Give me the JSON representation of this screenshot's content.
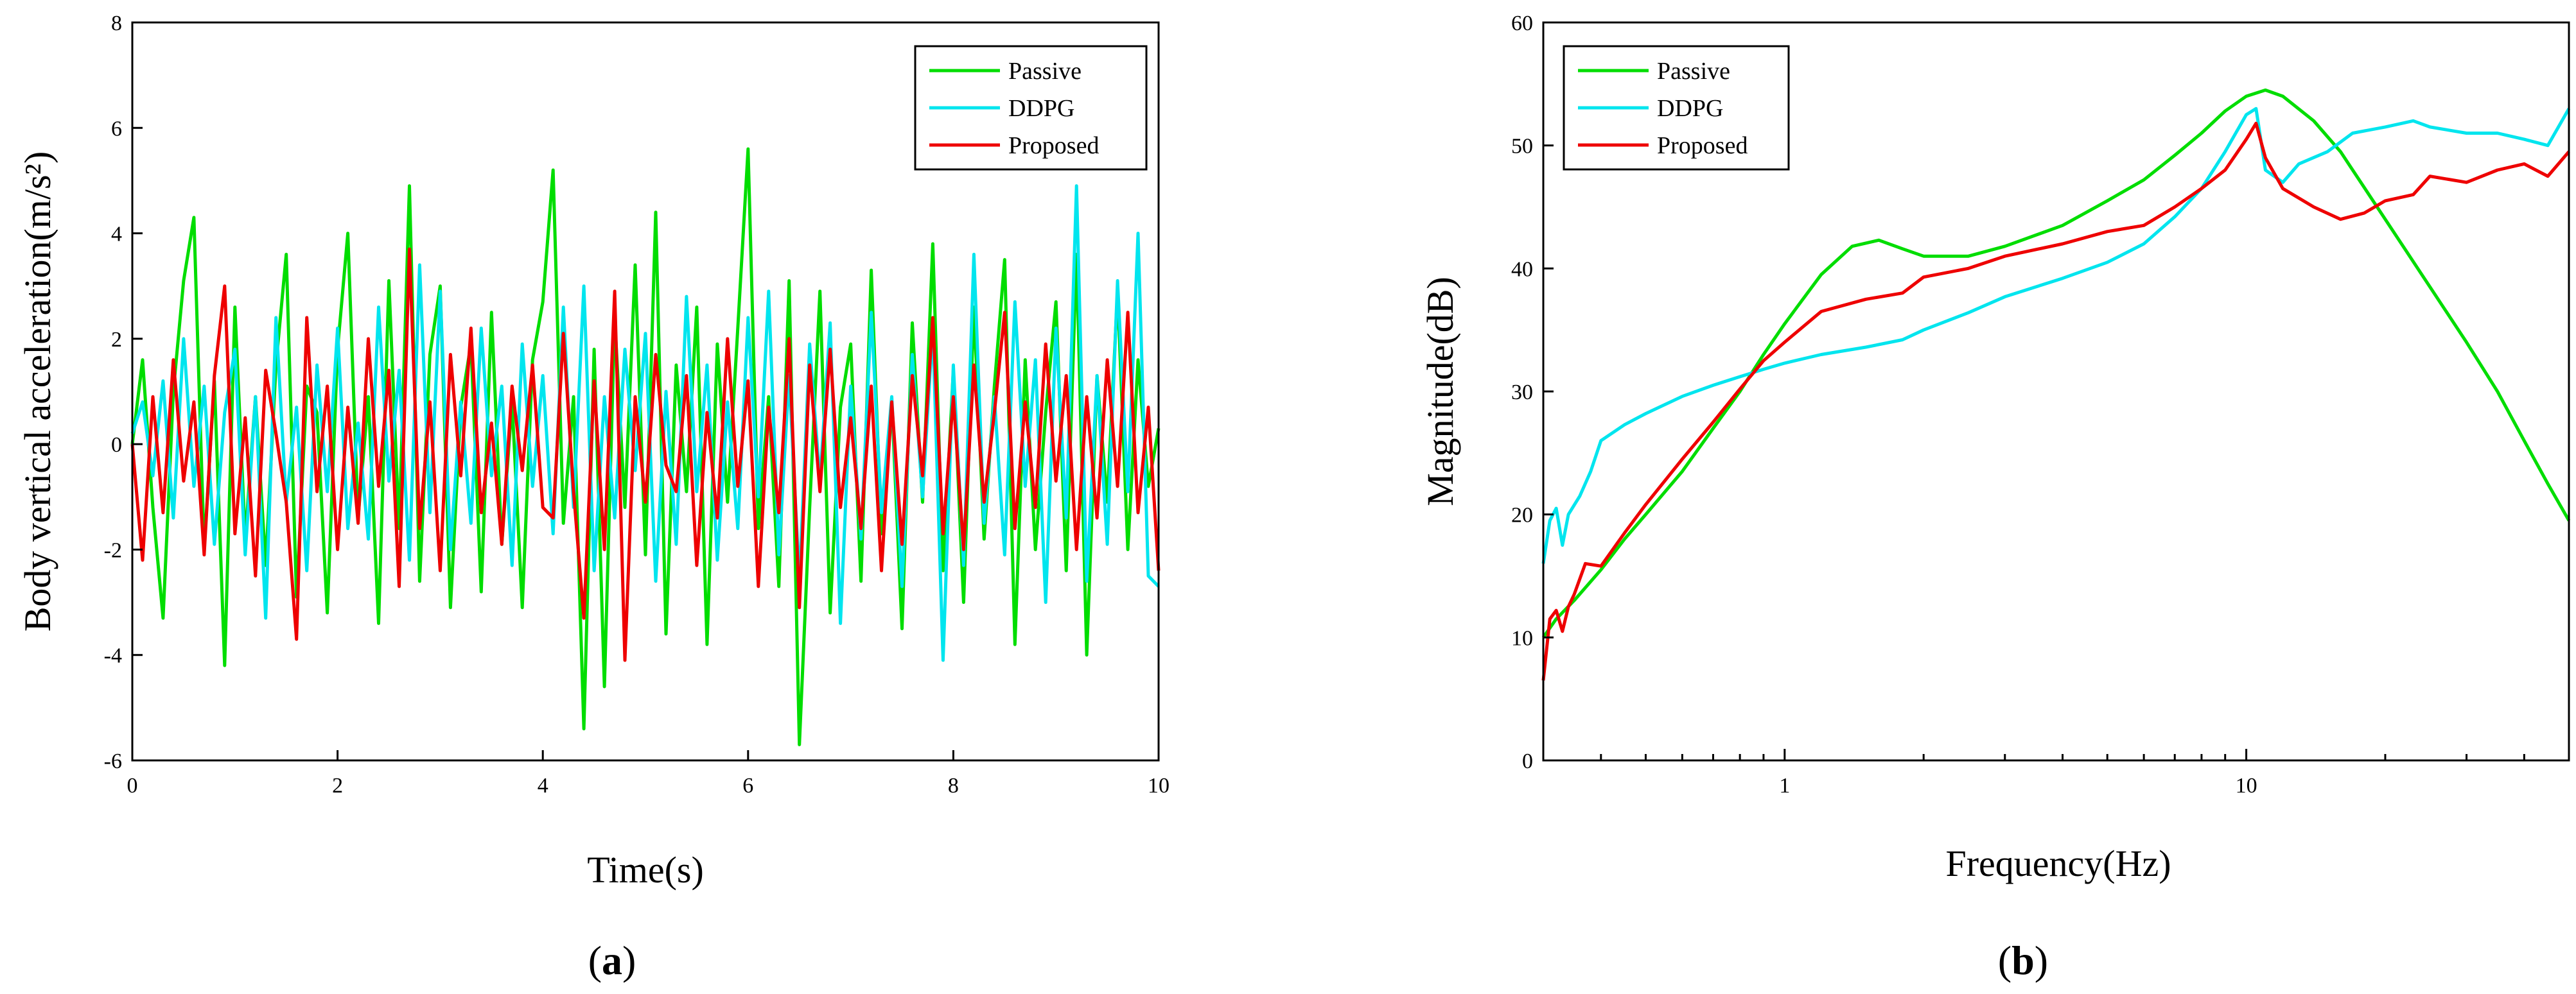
{
  "chart_data": [
    {
      "type": "line",
      "panel": "a",
      "xlabel": "Time(s)",
      "ylabel": "Body vertical acceleration(m/s²)",
      "xlim": [
        0,
        10
      ],
      "ylim": [
        -6,
        8
      ],
      "xticks": [
        0,
        2,
        4,
        6,
        8,
        10
      ],
      "yticks": [
        -6,
        -4,
        -2,
        0,
        2,
        4,
        6,
        8
      ],
      "legend_position": "top-right",
      "series": [
        {
          "name": "Passive",
          "color": "#00dd00",
          "x": [
            0,
            0.1,
            0.2,
            0.3,
            0.4,
            0.5,
            0.6,
            0.7,
            0.8,
            0.9,
            1,
            1.1,
            1.2,
            1.3,
            1.4,
            1.5,
            1.6,
            1.7,
            1.8,
            1.9,
            2,
            2.1,
            2.2,
            2.3,
            2.4,
            2.5,
            2.6,
            2.7,
            2.8,
            2.9,
            3,
            3.1,
            3.2,
            3.3,
            3.4,
            3.5,
            3.6,
            3.7,
            3.8,
            3.9,
            4,
            4.1,
            4.2,
            4.3,
            4.4,
            4.5,
            4.6,
            4.7,
            4.8,
            4.9,
            5,
            5.1,
            5.2,
            5.3,
            5.4,
            5.5,
            5.6,
            5.7,
            5.8,
            5.9,
            6,
            6.1,
            6.2,
            6.3,
            6.4,
            6.5,
            6.6,
            6.7,
            6.8,
            6.9,
            7,
            7.1,
            7.2,
            7.3,
            7.4,
            7.5,
            7.6,
            7.7,
            7.8,
            7.9,
            8,
            8.1,
            8.2,
            8.3,
            8.4,
            8.5,
            8.6,
            8.7,
            8.8,
            8.9,
            9,
            9.1,
            9.2,
            9.3,
            9.4,
            9.5,
            9.6,
            9.7,
            9.8,
            9.9,
            10
          ],
          "values": [
            0,
            1.6,
            -1.2,
            -3.3,
            1.0,
            3.1,
            4.3,
            -2.0,
            1.2,
            -4.2,
            2.6,
            -1.8,
            0.9,
            -2.3,
            1.5,
            3.6,
            -2.9,
            1.1,
            0.6,
            -3.2,
            1.8,
            4.0,
            -1.4,
            0.9,
            -3.4,
            3.1,
            -1.6,
            4.9,
            -2.6,
            1.7,
            3.0,
            -3.1,
            0.7,
            1.9,
            -2.8,
            2.5,
            -1.9,
            0.8,
            -3.1,
            1.6,
            2.7,
            5.2,
            -1.5,
            0.9,
            -5.4,
            1.8,
            -4.6,
            2.4,
            -1.2,
            3.4,
            -2.1,
            4.4,
            -3.6,
            1.5,
            -0.9,
            2.6,
            -3.8,
            1.9,
            -1.1,
            2.2,
            5.6,
            -1.6,
            0.9,
            -2.7,
            3.1,
            -5.7,
            -1.2,
            2.9,
            -3.2,
            0.7,
            1.9,
            -2.6,
            3.3,
            -1.7,
            0.8,
            -3.5,
            2.3,
            -1.1,
            3.8,
            -2.4,
            1.4,
            -3.0,
            2.6,
            -1.8,
            1.1,
            3.5,
            -3.8,
            1.6,
            -2.0,
            0.6,
            2.7,
            -2.4,
            3.6,
            -4.0,
            1.3,
            -1.1,
            2.9,
            -2.0,
            1.6,
            -0.8,
            0.3
          ]
        },
        {
          "name": "DDPG",
          "color": "#00e5ee",
          "x": [
            0,
            0.1,
            0.2,
            0.3,
            0.4,
            0.5,
            0.6,
            0.7,
            0.8,
            0.9,
            1,
            1.1,
            1.2,
            1.3,
            1.4,
            1.5,
            1.6,
            1.7,
            1.8,
            1.9,
            2,
            2.1,
            2.2,
            2.3,
            2.4,
            2.5,
            2.6,
            2.7,
            2.8,
            2.9,
            3,
            3.1,
            3.2,
            3.3,
            3.4,
            3.5,
            3.6,
            3.7,
            3.8,
            3.9,
            4,
            4.1,
            4.2,
            4.3,
            4.4,
            4.5,
            4.6,
            4.7,
            4.8,
            4.9,
            5,
            5.1,
            5.2,
            5.3,
            5.4,
            5.5,
            5.6,
            5.7,
            5.8,
            5.9,
            6,
            6.1,
            6.2,
            6.3,
            6.4,
            6.5,
            6.6,
            6.7,
            6.8,
            6.9,
            7,
            7.1,
            7.2,
            7.3,
            7.4,
            7.5,
            7.6,
            7.7,
            7.8,
            7.9,
            8,
            8.1,
            8.2,
            8.3,
            8.4,
            8.5,
            8.6,
            8.7,
            8.8,
            8.9,
            9,
            9.1,
            9.2,
            9.3,
            9.4,
            9.5,
            9.6,
            9.7,
            9.8,
            9.9,
            10
          ],
          "values": [
            0.2,
            0.8,
            -0.6,
            1.2,
            -1.4,
            2.0,
            -0.8,
            1.1,
            -1.9,
            0.6,
            1.8,
            -2.1,
            0.9,
            -3.3,
            2.4,
            -1.1,
            0.7,
            -2.4,
            1.5,
            -0.9,
            2.2,
            -1.6,
            0.4,
            -1.8,
            2.6,
            -0.7,
            1.4,
            -2.2,
            3.4,
            -1.3,
            2.9,
            -2.0,
            0.8,
            -1.5,
            2.2,
            -0.6,
            1.1,
            -2.3,
            1.9,
            -0.8,
            1.3,
            -1.7,
            2.6,
            -1.2,
            3.0,
            -2.4,
            0.9,
            -1.4,
            1.8,
            -0.5,
            2.1,
            -2.6,
            1.0,
            -1.9,
            2.8,
            -0.9,
            1.5,
            -2.2,
            0.8,
            -1.6,
            2.4,
            -1.0,
            2.9,
            -2.1,
            1.3,
            -2.6,
            1.9,
            -0.7,
            2.3,
            -3.4,
            1.1,
            -1.8,
            2.5,
            -1.3,
            0.9,
            -2.7,
            1.7,
            -1.0,
            2.2,
            -4.1,
            1.5,
            -2.3,
            3.6,
            -1.5,
            0.9,
            -2.1,
            2.7,
            -0.8,
            1.6,
            -3.0,
            2.2,
            -1.4,
            4.9,
            -2.6,
            1.3,
            -1.9,
            3.1,
            -0.9,
            4.0,
            -2.5,
            -2.7
          ]
        },
        {
          "name": "Proposed",
          "color": "#ee0000",
          "x": [
            0,
            0.1,
            0.2,
            0.3,
            0.4,
            0.5,
            0.6,
            0.7,
            0.8,
            0.9,
            1,
            1.1,
            1.2,
            1.3,
            1.4,
            1.5,
            1.6,
            1.7,
            1.8,
            1.9,
            2,
            2.1,
            2.2,
            2.3,
            2.4,
            2.5,
            2.6,
            2.7,
            2.8,
            2.9,
            3,
            3.1,
            3.2,
            3.3,
            3.4,
            3.5,
            3.6,
            3.7,
            3.8,
            3.9,
            4,
            4.1,
            4.2,
            4.3,
            4.4,
            4.5,
            4.6,
            4.7,
            4.8,
            4.9,
            5,
            5.1,
            5.2,
            5.3,
            5.4,
            5.5,
            5.6,
            5.7,
            5.8,
            5.9,
            6,
            6.1,
            6.2,
            6.3,
            6.4,
            6.5,
            6.6,
            6.7,
            6.8,
            6.9,
            7,
            7.1,
            7.2,
            7.3,
            7.4,
            7.5,
            7.6,
            7.7,
            7.8,
            7.9,
            8,
            8.1,
            8.2,
            8.3,
            8.4,
            8.5,
            8.6,
            8.7,
            8.8,
            8.9,
            9,
            9.1,
            9.2,
            9.3,
            9.4,
            9.5,
            9.6,
            9.7,
            9.8,
            9.9,
            10
          ],
          "values": [
            0,
            -2.2,
            0.9,
            -1.3,
            1.6,
            -0.7,
            0.8,
            -2.1,
            1.3,
            3.0,
            -1.7,
            0.5,
            -2.5,
            1.4,
            0.2,
            -1.1,
            -3.7,
            2.4,
            -0.9,
            1.1,
            -2.0,
            0.7,
            -1.5,
            2.0,
            -0.8,
            1.4,
            -2.7,
            3.7,
            -1.6,
            0.8,
            -2.4,
            1.7,
            -0.6,
            2.2,
            -1.3,
            0.4,
            -1.9,
            1.1,
            -0.5,
            1.5,
            -1.2,
            -1.4,
            2.1,
            -0.9,
            -3.3,
            1.2,
            -2.0,
            2.9,
            -4.1,
            0.9,
            -1.1,
            1.7,
            -0.4,
            -0.9,
            1.3,
            -2.3,
            0.6,
            -1.4,
            2.0,
            -0.8,
            1.2,
            -2.7,
            0.7,
            -1.3,
            2.0,
            -3.1,
            1.5,
            -0.9,
            1.8,
            -1.2,
            0.5,
            -1.6,
            1.1,
            -2.4,
            0.8,
            -1.9,
            1.3,
            -0.6,
            2.4,
            -1.7,
            0.9,
            -2.0,
            1.5,
            -1.1,
            0.6,
            2.5,
            -1.6,
            0.8,
            -1.2,
            1.9,
            -0.7,
            1.3,
            -2.0,
            0.9,
            -1.4,
            1.6,
            -0.8,
            2.5,
            -1.3,
            0.7,
            -2.4
          ]
        }
      ]
    },
    {
      "type": "line",
      "panel": "b",
      "xlabel": "Frequency(Hz)",
      "ylabel": "Magnitude(dB)",
      "xscale": "log",
      "xlim": [
        0.3,
        50
      ],
      "ylim": [
        0,
        60
      ],
      "xticks": [
        1,
        10
      ],
      "yticks": [
        0,
        10,
        20,
        30,
        40,
        50,
        60
      ],
      "legend_position": "top-left",
      "series": [
        {
          "name": "Passive",
          "color": "#00dd00",
          "x": [
            0.3,
            0.32,
            0.35,
            0.4,
            0.45,
            0.5,
            0.6,
            0.7,
            0.8,
            0.9,
            1,
            1.2,
            1.4,
            1.6,
            1.8,
            2,
            2.5,
            3,
            4,
            5,
            6,
            7,
            8,
            9,
            10,
            11,
            12,
            14,
            16,
            20,
            25,
            30,
            35,
            40,
            45,
            50
          ],
          "values": [
            10,
            11.5,
            13,
            15.5,
            18,
            20,
            23.5,
            27,
            30,
            33,
            35.5,
            39.5,
            41.8,
            42.3,
            41.6,
            41,
            41,
            41.8,
            43.5,
            45.5,
            47.2,
            49.2,
            51,
            52.8,
            54,
            54.5,
            54,
            52,
            49.5,
            44,
            38.5,
            34,
            30,
            26,
            22.5,
            19.5
          ]
        },
        {
          "name": "DDPG",
          "color": "#00e5ee",
          "x": [
            0.3,
            0.31,
            0.32,
            0.33,
            0.34,
            0.36,
            0.38,
            0.4,
            0.45,
            0.5,
            0.6,
            0.7,
            0.8,
            0.9,
            1,
            1.2,
            1.5,
            1.8,
            2,
            2.5,
            3,
            4,
            5,
            6,
            7,
            8,
            9,
            10,
            10.5,
            11,
            12,
            13,
            15,
            17,
            20,
            23,
            25,
            30,
            35,
            40,
            45,
            50
          ],
          "values": [
            16,
            19.5,
            20.5,
            17.5,
            20,
            21.5,
            23.5,
            26,
            27.3,
            28.2,
            29.6,
            30.5,
            31.2,
            31.8,
            32.3,
            33,
            33.6,
            34.2,
            35,
            36.4,
            37.7,
            39.2,
            40.5,
            42,
            44.2,
            46.5,
            49.5,
            52.5,
            53,
            48,
            47,
            48.5,
            49.5,
            51,
            51.5,
            52,
            51.5,
            51,
            51,
            50.5,
            50,
            53
          ]
        },
        {
          "name": "Proposed",
          "color": "#ee0000",
          "x": [
            0.3,
            0.31,
            0.32,
            0.33,
            0.34,
            0.35,
            0.37,
            0.4,
            0.45,
            0.5,
            0.6,
            0.7,
            0.8,
            0.9,
            1,
            1.2,
            1.5,
            1.8,
            2,
            2.5,
            3,
            4,
            5,
            6,
            7,
            8,
            9,
            10,
            10.5,
            11,
            12,
            14,
            16,
            18,
            20,
            23,
            25,
            30,
            35,
            40,
            45,
            50
          ],
          "values": [
            6.5,
            11.5,
            12.2,
            10.5,
            12.5,
            13.5,
            16,
            15.8,
            18.5,
            20.8,
            24.5,
            27.5,
            30.2,
            32.5,
            34,
            36.5,
            37.5,
            38,
            39.3,
            40,
            41,
            42,
            43,
            43.5,
            45,
            46.5,
            48,
            50.5,
            51.8,
            49,
            46.5,
            45,
            44,
            44.5,
            45.5,
            46,
            47.5,
            47,
            48,
            48.5,
            47.5,
            49.5
          ]
        }
      ]
    }
  ]
}
